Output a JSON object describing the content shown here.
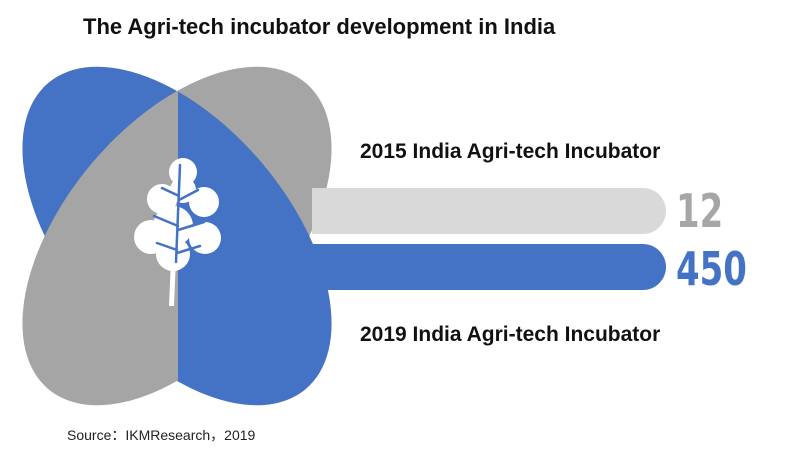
{
  "title": "The Agri-tech incubator development in India",
  "source": "Source：IKMResearch，2019",
  "colors": {
    "blue": "#4472C4",
    "gray": "#A5A5A5",
    "light_gray": "#D9D9D9",
    "value_gray": "#A6A6A6",
    "white": "#FFFFFF"
  },
  "icon": "oak-leaf-icon",
  "chart_data": {
    "type": "bar",
    "title": "The Agri-tech incubator development in India",
    "categories": [
      "2015 India Agri-tech Incubator",
      "2019 India Agri-tech Incubator"
    ],
    "values": [
      12,
      450
    ],
    "value_labels": [
      "12",
      "450"
    ]
  }
}
